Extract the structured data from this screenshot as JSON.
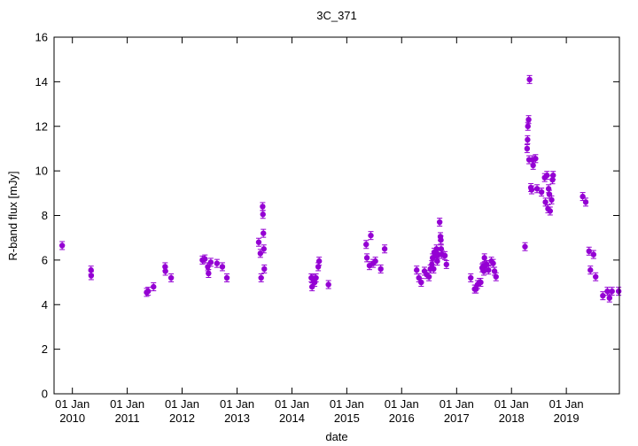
{
  "chart_data": {
    "type": "scatter",
    "title": "3C_371",
    "xlabel": "date",
    "ylabel": "R-band flux [mJy]",
    "ylim": [
      0,
      16
    ],
    "xlim": [
      "2009-09-01",
      "2019-12-20"
    ],
    "grid": false,
    "legend": "none",
    "yticks": [
      0,
      2,
      4,
      6,
      8,
      10,
      12,
      14,
      16
    ],
    "xticks": [
      {
        "date": "2010-01-01",
        "line1": "01 Jan",
        "line2": "2010"
      },
      {
        "date": "2011-01-01",
        "line1": "01 Jan",
        "line2": "2011"
      },
      {
        "date": "2012-01-01",
        "line1": "01 Jan",
        "line2": "2012"
      },
      {
        "date": "2013-01-01",
        "line1": "01 Jan",
        "line2": "2013"
      },
      {
        "date": "2014-01-01",
        "line1": "01 Jan",
        "line2": "2014"
      },
      {
        "date": "2015-01-01",
        "line1": "01 Jan",
        "line2": "2015"
      },
      {
        "date": "2016-01-01",
        "line1": "01 Jan",
        "line2": "2016"
      },
      {
        "date": "2017-01-01",
        "line1": "01 Jan",
        "line2": "2017"
      },
      {
        "date": "2018-01-01",
        "line1": "01 Jan",
        "line2": "2018"
      },
      {
        "date": "2019-01-01",
        "line1": "01 Jan",
        "line2": "2019"
      }
    ],
    "series": [
      {
        "color": "#9400d3",
        "points": [
          [
            "2009-10-25",
            6.65
          ],
          [
            "2010-05-05",
            5.55
          ],
          [
            "2010-05-06",
            5.3
          ],
          [
            "2011-05-10",
            4.55
          ],
          [
            "2011-05-20",
            4.6
          ],
          [
            "2011-06-25",
            4.8
          ],
          [
            "2011-09-10",
            5.7
          ],
          [
            "2011-09-12",
            5.5
          ],
          [
            "2011-10-20",
            5.2
          ],
          [
            "2012-05-15",
            6.0
          ],
          [
            "2012-06-01",
            6.05
          ],
          [
            "2012-06-20",
            5.7
          ],
          [
            "2012-06-25",
            5.4
          ],
          [
            "2012-07-10",
            5.9
          ],
          [
            "2012-08-20",
            5.85
          ],
          [
            "2012-09-25",
            5.7
          ],
          [
            "2012-10-25",
            5.2
          ],
          [
            "2013-05-25",
            6.8
          ],
          [
            "2013-06-05",
            6.3
          ],
          [
            "2013-06-10",
            5.2
          ],
          [
            "2013-06-20",
            8.4
          ],
          [
            "2013-06-22",
            8.05
          ],
          [
            "2013-06-25",
            7.2
          ],
          [
            "2013-06-28",
            6.5
          ],
          [
            "2013-07-01",
            5.6
          ],
          [
            "2014-05-10",
            5.2
          ],
          [
            "2014-05-15",
            4.8
          ],
          [
            "2014-05-20",
            5.15
          ],
          [
            "2014-06-01",
            5.0
          ],
          [
            "2014-06-10",
            5.2
          ],
          [
            "2014-06-25",
            5.7
          ],
          [
            "2014-07-01",
            5.95
          ],
          [
            "2014-09-01",
            4.9
          ],
          [
            "2015-05-10",
            6.7
          ],
          [
            "2015-05-15",
            6.1
          ],
          [
            "2015-06-01",
            5.75
          ],
          [
            "2015-06-10",
            7.1
          ],
          [
            "2015-06-25",
            5.85
          ],
          [
            "2015-07-10",
            5.95
          ],
          [
            "2015-08-15",
            5.6
          ],
          [
            "2015-09-10",
            6.5
          ],
          [
            "2016-04-10",
            5.55
          ],
          [
            "2016-04-25",
            5.2
          ],
          [
            "2016-05-10",
            5.0
          ],
          [
            "2016-06-01",
            5.5
          ],
          [
            "2016-06-15",
            5.35
          ],
          [
            "2016-07-01",
            5.25
          ],
          [
            "2016-07-10",
            5.6
          ],
          [
            "2016-07-20",
            5.8
          ],
          [
            "2016-07-25",
            6.1
          ],
          [
            "2016-08-01",
            5.6
          ],
          [
            "2016-08-05",
            6.35
          ],
          [
            "2016-08-15",
            6.2
          ],
          [
            "2016-08-20",
            6.5
          ],
          [
            "2016-08-25",
            5.95
          ],
          [
            "2016-09-01",
            6.25
          ],
          [
            "2016-09-10",
            7.7
          ],
          [
            "2016-09-15",
            7.05
          ],
          [
            "2016-09-18",
            6.9
          ],
          [
            "2016-09-20",
            6.5
          ],
          [
            "2016-09-25",
            6.25
          ],
          [
            "2016-10-15",
            6.2
          ],
          [
            "2016-10-25",
            5.8
          ],
          [
            "2017-04-05",
            5.2
          ],
          [
            "2017-05-01",
            4.7
          ],
          [
            "2017-05-10",
            4.7
          ],
          [
            "2017-05-20",
            4.9
          ],
          [
            "2017-06-01",
            5.0
          ],
          [
            "2017-06-10",
            5.0
          ],
          [
            "2017-06-20",
            5.65
          ],
          [
            "2017-06-25",
            5.7
          ],
          [
            "2017-07-01",
            5.5
          ],
          [
            "2017-07-05",
            6.1
          ],
          [
            "2017-07-10",
            5.75
          ],
          [
            "2017-07-20",
            5.8
          ],
          [
            "2017-08-01",
            5.55
          ],
          [
            "2017-08-20",
            5.95
          ],
          [
            "2017-09-01",
            5.85
          ],
          [
            "2017-09-10",
            5.5
          ],
          [
            "2017-09-20",
            5.25
          ],
          [
            "2018-04-01",
            6.6
          ],
          [
            "2018-04-15",
            11.0
          ],
          [
            "2018-04-18",
            11.4
          ],
          [
            "2018-04-20",
            12.0
          ],
          [
            "2018-04-25",
            12.3
          ],
          [
            "2018-04-28",
            10.5
          ],
          [
            "2018-05-01",
            14.1
          ],
          [
            "2018-05-10",
            9.25
          ],
          [
            "2018-05-15",
            9.15
          ],
          [
            "2018-05-20",
            10.5
          ],
          [
            "2018-05-25",
            10.25
          ],
          [
            "2018-06-10",
            10.55
          ],
          [
            "2018-06-20",
            9.2
          ],
          [
            "2018-07-20",
            9.05
          ],
          [
            "2018-08-10",
            9.7
          ],
          [
            "2018-08-15",
            8.6
          ],
          [
            "2018-08-25",
            9.8
          ],
          [
            "2018-09-01",
            8.3
          ],
          [
            "2018-09-05",
            9.2
          ],
          [
            "2018-09-10",
            8.95
          ],
          [
            "2018-09-15",
            8.2
          ],
          [
            "2018-09-25",
            8.7
          ],
          [
            "2018-10-01",
            9.6
          ],
          [
            "2018-10-05",
            9.8
          ],
          [
            "2019-04-20",
            8.85
          ],
          [
            "2019-05-10",
            8.6
          ],
          [
            "2019-06-01",
            6.4
          ],
          [
            "2019-06-10",
            5.55
          ],
          [
            "2019-07-01",
            6.25
          ],
          [
            "2019-07-15",
            5.25
          ],
          [
            "2019-09-01",
            4.4
          ],
          [
            "2019-10-01",
            4.6
          ],
          [
            "2019-10-15",
            4.3
          ],
          [
            "2019-11-01",
            4.6
          ],
          [
            "2019-12-15",
            4.6
          ]
        ]
      }
    ]
  }
}
